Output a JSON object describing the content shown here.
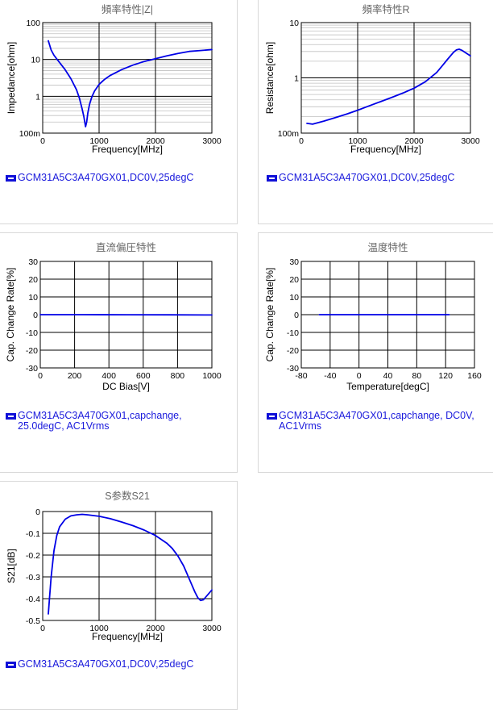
{
  "colors": {
    "series": "#0000e6",
    "grid_major": "#000000",
    "grid_minor": "#c0c0c0",
    "legend_text": "#1a1adc"
  },
  "charts": [
    {
      "title": "頻率特性|Z|",
      "legend": "GCM31A5C3A470GX01,DC0V,25degC",
      "legend_icon": "series-line-icon"
    },
    {
      "title": "頻率特性R",
      "legend": "GCM31A5C3A470GX01,DC0V,25degC",
      "legend_icon": "series-line-icon"
    },
    {
      "title": "直流偏圧特性",
      "legend": "GCM31A5C3A470GX01,capchange, 25.0degC, AC1Vrms",
      "legend_icon": "series-line-icon"
    },
    {
      "title": "温度特性",
      "legend": "GCM31A5C3A470GX01,capchange, DC0V, AC1Vrms",
      "legend_icon": "series-line-icon"
    },
    {
      "title": "S参数S21",
      "legend": "GCM31A5C3A470GX01,DC0V,25degC",
      "legend_icon": "series-line-icon"
    }
  ],
  "chart_data": [
    {
      "type": "line",
      "title": "頻率特性|Z|",
      "xlabel": "Frequency[MHz]",
      "ylabel": "Impedance[ohm]",
      "xlim": [
        0,
        3000
      ],
      "ylim": [
        0.1,
        100
      ],
      "yscale": "log",
      "xticks": [
        0,
        1000,
        2000,
        3000
      ],
      "yticks": [
        100,
        10,
        1,
        0.1
      ],
      "ytick_labels": [
        "100",
        "10",
        "1",
        "100m"
      ],
      "grid": true,
      "series": [
        {
          "name": "GCM31A5C3A470GX01,DC0V,25degC",
          "x": [
            100,
            150,
            200,
            300,
            400,
            500,
            600,
            650,
            700,
            730,
            760,
            780,
            800,
            830,
            870,
            920,
            1000,
            1100,
            1200,
            1400,
            1600,
            1800,
            2000,
            2200,
            2400,
            2600,
            2800,
            3000
          ],
          "y": [
            32,
            18,
            13,
            8.2,
            5.2,
            3.0,
            1.5,
            0.9,
            0.45,
            0.28,
            0.15,
            0.2,
            0.35,
            0.6,
            0.95,
            1.4,
            2.1,
            2.9,
            3.7,
            5.3,
            7.0,
            8.8,
            10.5,
            12.5,
            14.5,
            16.5,
            17.5,
            18.5
          ]
        }
      ]
    },
    {
      "type": "line",
      "title": "頻率特性R",
      "xlabel": "Frequency[MHz]",
      "ylabel": "Resistance[ohm]",
      "xlim": [
        0,
        3000
      ],
      "ylim": [
        0.1,
        10
      ],
      "yscale": "log",
      "xticks": [
        0,
        1000,
        2000,
        3000
      ],
      "yticks": [
        10,
        1,
        0.1
      ],
      "ytick_labels": [
        "10",
        "1",
        "100m"
      ],
      "grid": true,
      "series": [
        {
          "name": "GCM31A5C3A470GX01,DC0V,25degC",
          "x": [
            100,
            200,
            300,
            400,
            600,
            800,
            1000,
            1200,
            1400,
            1600,
            1800,
            2000,
            2200,
            2400,
            2500,
            2600,
            2700,
            2750,
            2800,
            2850,
            2900,
            2950,
            3000
          ],
          "y": [
            0.15,
            0.145,
            0.155,
            0.165,
            0.19,
            0.22,
            0.26,
            0.31,
            0.37,
            0.44,
            0.53,
            0.65,
            0.85,
            1.25,
            1.65,
            2.2,
            2.9,
            3.2,
            3.3,
            3.15,
            2.9,
            2.7,
            2.5
          ]
        }
      ]
    },
    {
      "type": "line",
      "title": "直流偏圧特性",
      "xlabel": "DC Bias[V]",
      "ylabel": "Cap. Change Rate[%]",
      "xlim": [
        0,
        1000
      ],
      "ylim": [
        -30,
        30
      ],
      "xticks": [
        0,
        200,
        400,
        600,
        800,
        1000
      ],
      "yticks": [
        30,
        20,
        10,
        0,
        -10,
        -20,
        -30
      ],
      "grid": true,
      "series": [
        {
          "name": "GCM31A5C3A470GX01,capchange, 25.0degC, AC1Vrms",
          "x": [
            0,
            250,
            500,
            750,
            1000
          ],
          "y": [
            0,
            0,
            -0.05,
            -0.1,
            -0.2
          ]
        }
      ]
    },
    {
      "type": "line",
      "title": "温度特性",
      "xlabel": "Temperature[degC]",
      "ylabel": "Cap. Change Rate[%]",
      "xlim": [
        -80,
        160
      ],
      "ylim": [
        -30,
        30
      ],
      "xticks": [
        -80,
        -40,
        0,
        40,
        80,
        120,
        160
      ],
      "yticks": [
        30,
        20,
        10,
        0,
        -10,
        -20,
        -30
      ],
      "grid": true,
      "series": [
        {
          "name": "GCM31A5C3A470GX01,capchange, DC0V, AC1Vrms",
          "x": [
            -55,
            -25,
            0,
            25,
            50,
            85,
            125
          ],
          "y": [
            0,
            0,
            0,
            0,
            0,
            0,
            0
          ]
        }
      ]
    },
    {
      "type": "line",
      "title": "S参数S21",
      "xlabel": "Frequency[MHz]",
      "ylabel": "S21[dB]",
      "xlim": [
        0,
        3000
      ],
      "ylim": [
        -0.5,
        0
      ],
      "xticks": [
        0,
        1000,
        2000,
        3000
      ],
      "yticks": [
        0,
        -0.1,
        -0.2,
        -0.3,
        -0.4,
        -0.5
      ],
      "ytick_labels": [
        "0",
        "-0.1",
        "-0.2",
        "-0.3",
        "-0.4",
        "-0.5"
      ],
      "grid": true,
      "series": [
        {
          "name": "GCM31A5C3A470GX01,DC0V,25degC",
          "x": [
            100,
            120,
            150,
            200,
            250,
            300,
            400,
            500,
            600,
            700,
            800,
            1000,
            1200,
            1400,
            1600,
            1800,
            2000,
            2200,
            2300,
            2400,
            2500,
            2600,
            2700,
            2750,
            2800,
            2850,
            2900,
            2950,
            3000
          ],
          "y": [
            -0.47,
            -0.4,
            -0.3,
            -0.18,
            -0.11,
            -0.07,
            -0.035,
            -0.02,
            -0.015,
            -0.013,
            -0.015,
            -0.022,
            -0.033,
            -0.048,
            -0.065,
            -0.085,
            -0.11,
            -0.145,
            -0.17,
            -0.205,
            -0.25,
            -0.31,
            -0.37,
            -0.395,
            -0.408,
            -0.405,
            -0.39,
            -0.375,
            -0.36
          ]
        }
      ]
    }
  ]
}
